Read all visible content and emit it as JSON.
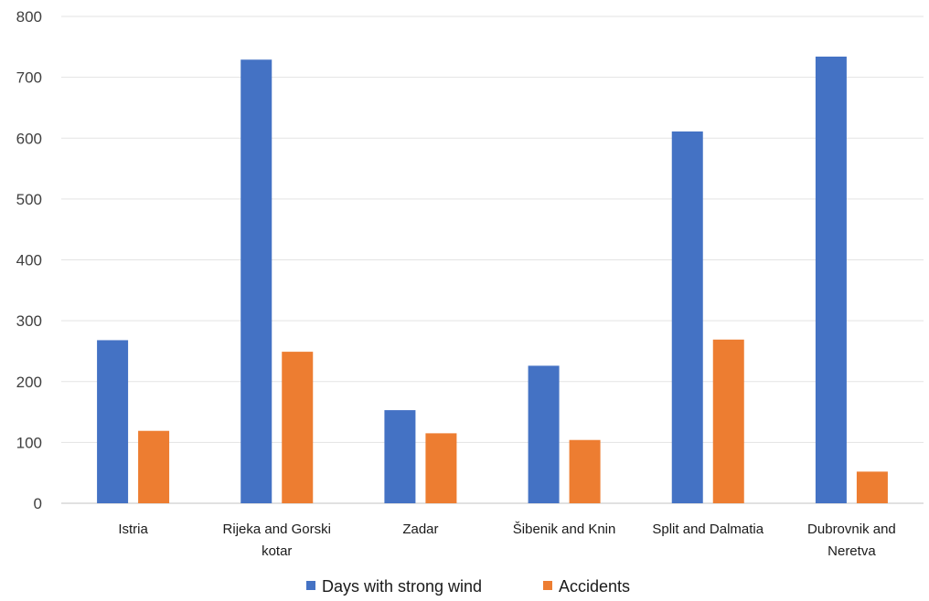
{
  "chart_data": {
    "type": "bar",
    "title": "",
    "xlabel": "",
    "ylabel": "",
    "ylim": [
      0,
      800
    ],
    "yticks": [
      0,
      100,
      200,
      300,
      400,
      500,
      600,
      700,
      800
    ],
    "grid": true,
    "legend_position": "bottom",
    "categories": [
      [
        "Istria"
      ],
      [
        "Rijeka and Gorski",
        "kotar"
      ],
      [
        "Zadar"
      ],
      [
        "Šibenik and Knin"
      ],
      [
        "Split and Dalmatia"
      ],
      [
        "Dubrovnik and",
        "Neretva"
      ]
    ],
    "series": [
      {
        "name": "Days with strong wind",
        "color": "#4472C4",
        "values": [
          268,
          729,
          153,
          226,
          611,
          734
        ]
      },
      {
        "name": "Accidents",
        "color": "#ED7D31",
        "values": [
          119,
          249,
          115,
          104,
          269,
          52
        ]
      }
    ]
  }
}
